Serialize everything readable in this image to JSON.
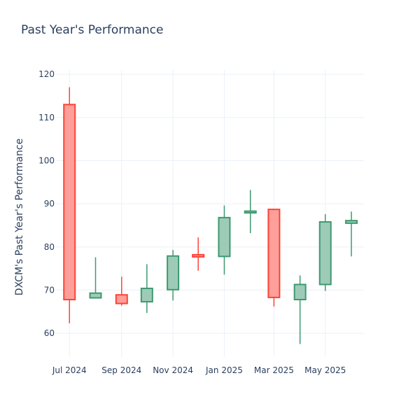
{
  "chart_data": {
    "type": "candlestick",
    "title": "Past Year's Performance",
    "xlabel": "",
    "ylabel": "DXCM's Past Year's Performance",
    "ylim": [
      54.5,
      121
    ],
    "y_ticks": [
      60,
      70,
      80,
      90,
      100,
      110,
      120
    ],
    "x_ticks": [
      {
        "label": "Jul 2024",
        "date": "2024-07-01"
      },
      {
        "label": "Sep 2024",
        "date": "2024-09-01"
      },
      {
        "label": "Nov 2024",
        "date": "2024-11-01"
      },
      {
        "label": "Jan 2025",
        "date": "2025-01-01"
      },
      {
        "label": "Mar 2025",
        "date": "2025-03-01"
      },
      {
        "label": "May 2025",
        "date": "2025-05-01"
      }
    ],
    "x_range": [
      "2024-06-15",
      "2025-06-16"
    ],
    "grid": true,
    "colors": {
      "increasing": "#3d9970",
      "decreasing": "#ff4136",
      "increasing_fill": "#9ecbb7",
      "decreasing_fill": "#ff9f9a"
    },
    "candles": [
      {
        "date": "2024-07-01",
        "open": 113,
        "high": 117,
        "low": 62.3,
        "close": 67.8
      },
      {
        "date": "2024-08-01",
        "open": 68.2,
        "high": 77.6,
        "low": 68.2,
        "close": 69.3
      },
      {
        "date": "2024-09-01",
        "open": 68.9,
        "high": 73.1,
        "low": 66.4,
        "close": 66.9
      },
      {
        "date": "2024-10-01",
        "open": 67.3,
        "high": 76,
        "low": 64.7,
        "close": 70.4
      },
      {
        "date": "2024-11-01",
        "open": 70.1,
        "high": 79.3,
        "low": 67.6,
        "close": 77.9
      },
      {
        "date": "2024-12-01",
        "open": 78.2,
        "high": 82.2,
        "low": 74.5,
        "close": 77.7
      },
      {
        "date": "2025-01-01",
        "open": 77.8,
        "high": 89.6,
        "low": 73.6,
        "close": 86.8
      },
      {
        "date": "2025-02-01",
        "open": 87.9,
        "high": 93.2,
        "low": 83.2,
        "close": 88.3
      },
      {
        "date": "2025-03-01",
        "open": 88.7,
        "high": 88.7,
        "low": 66.2,
        "close": 68.3
      },
      {
        "date": "2025-04-01",
        "open": 67.8,
        "high": 73.4,
        "low": 57.5,
        "close": 71.3
      },
      {
        "date": "2025-05-01",
        "open": 71.3,
        "high": 87.6,
        "low": 69.8,
        "close": 85.8
      },
      {
        "date": "2025-06-01",
        "open": 85.5,
        "high": 88.2,
        "low": 77.8,
        "close": 86.1
      }
    ]
  }
}
